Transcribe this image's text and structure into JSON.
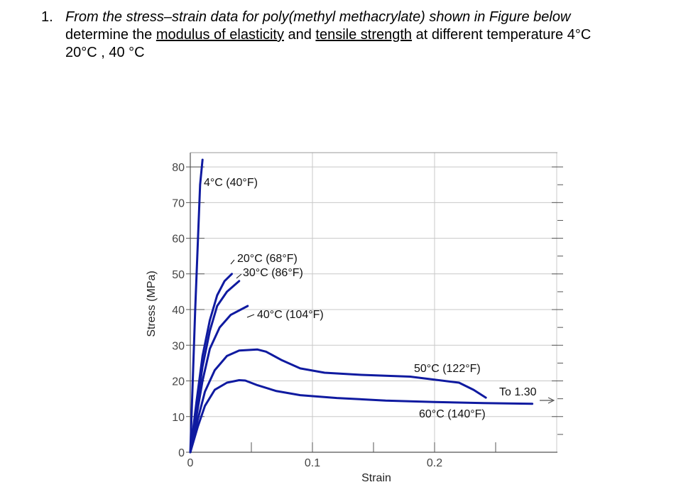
{
  "question": {
    "number": "1.",
    "line1": "From the stress–strain data for poly(methyl methacrylate) shown in Figure below",
    "line2_pre": "determine the ",
    "line2_u1": "modulus of elasticity",
    "line2_mid": " and ",
    "line2_u2": "tensile strength",
    "line2_post": " at different temperature 4°C",
    "line3": "20°C , 40 °C"
  },
  "chart_data": {
    "type": "line",
    "xlabel": "Strain",
    "ylabel": "Stress (MPa)",
    "xlim": [
      0,
      0.3
    ],
    "ylim": [
      0,
      80
    ],
    "y_ticks": [
      "0",
      "10",
      "20",
      "30",
      "40",
      "50",
      "60",
      "70",
      "80"
    ],
    "x_ticks": [
      "0",
      "0.1",
      "0.2"
    ],
    "series_color": "#0f1aa0",
    "series": [
      {
        "name": "4°C (40°F)",
        "x": [
          0,
          0.004,
          0.008,
          0.01
        ],
        "y": [
          0,
          40,
          75,
          82
        ]
      },
      {
        "name": "20°C (68°F)",
        "x": [
          0,
          0.005,
          0.01,
          0.016,
          0.022,
          0.028,
          0.034
        ],
        "y": [
          0,
          14,
          27,
          37,
          44,
          48,
          50
        ]
      },
      {
        "name": "30°C (86°F)",
        "x": [
          0,
          0.005,
          0.01,
          0.016,
          0.022,
          0.03,
          0.04
        ],
        "y": [
          0,
          12,
          24,
          34,
          41,
          45,
          48
        ]
      },
      {
        "name": "40°C (104°F)",
        "x": [
          0,
          0.005,
          0.01,
          0.016,
          0.024,
          0.033,
          0.047
        ],
        "y": [
          0,
          10,
          20,
          29,
          35,
          38.5,
          41
        ]
      },
      {
        "name": "50°C (122°F)",
        "x": [
          0,
          0.006,
          0.012,
          0.02,
          0.03,
          0.04,
          0.055,
          0.062,
          0.075,
          0.09,
          0.11,
          0.14,
          0.18,
          0.22,
          0.232,
          0.242
        ],
        "y": [
          0,
          9,
          17,
          23,
          27,
          28.5,
          28.8,
          28.2,
          25.8,
          23.5,
          22.3,
          21.7,
          21.2,
          19.5,
          17.5,
          15.3
        ]
      },
      {
        "name": "60°C (140°F)",
        "x": [
          0,
          0.006,
          0.012,
          0.02,
          0.03,
          0.04,
          0.045,
          0.055,
          0.07,
          0.09,
          0.12,
          0.16,
          0.2,
          0.24,
          0.28
        ],
        "y": [
          0,
          7,
          13,
          17.5,
          19.5,
          20.2,
          20.1,
          18.8,
          17.2,
          16.0,
          15.2,
          14.5,
          14.1,
          13.8,
          13.6
        ]
      }
    ],
    "annotations": [
      {
        "text": "4°C (40°F)",
        "series": 0
      },
      {
        "text": "20°C (68°F)",
        "series": 1
      },
      {
        "text": "30°C (86°F)",
        "series": 2
      },
      {
        "text": "40°C (104°F)",
        "series": 3
      },
      {
        "text": "50°C (122°F)",
        "series": 4
      },
      {
        "text": "To 1.30",
        "series": 5
      },
      {
        "text": "60°C (140°F)",
        "series": 5
      }
    ],
    "grid": true
  }
}
